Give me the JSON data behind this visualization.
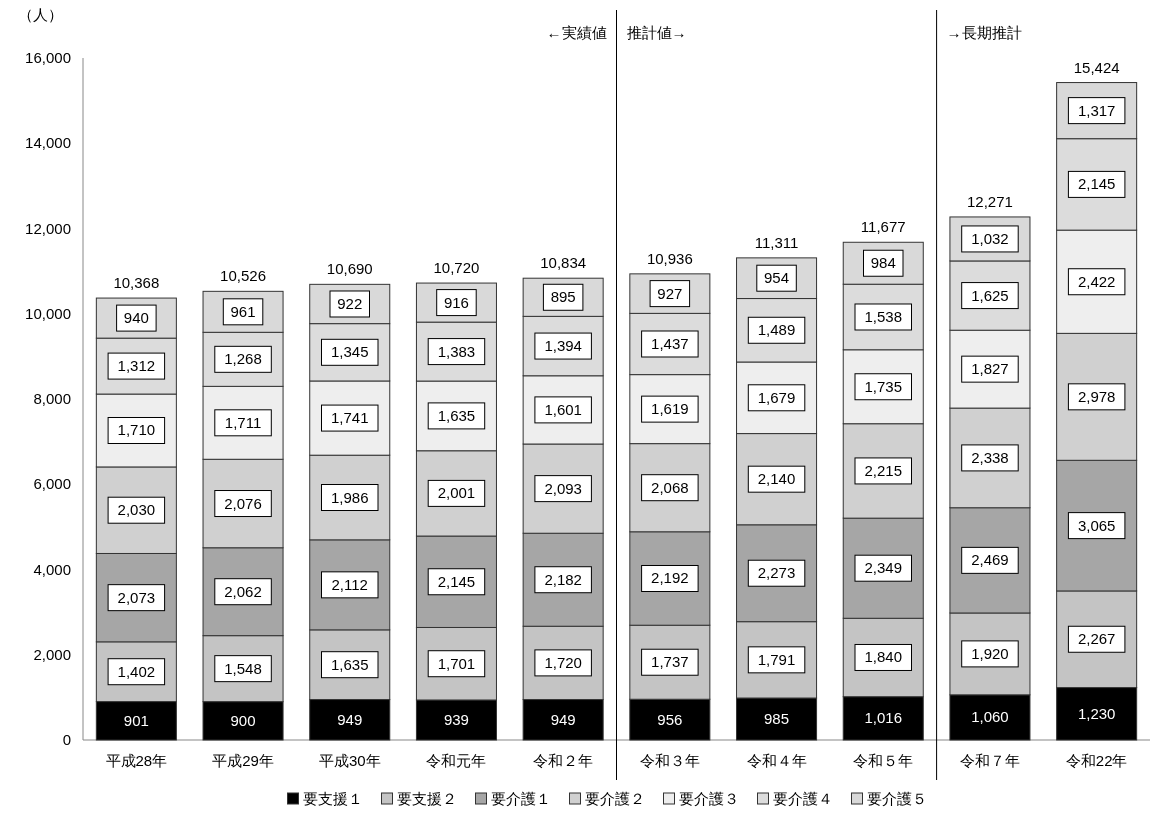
{
  "chart_data": {
    "type": "bar",
    "stacked": true,
    "ylabel": "（人）",
    "categories": [
      "平成28年",
      "平成29年",
      "平成30年",
      "令和元年",
      "令和２年",
      "令和３年",
      "令和４年",
      "令和５年",
      "令和７年",
      "令和22年"
    ],
    "series": [
      {
        "name": "要支援１",
        "color": "#000000",
        "values": [
          901,
          900,
          949,
          939,
          949,
          956,
          985,
          1016,
          1060,
          1230
        ],
        "value_labels": [
          "901",
          "900",
          "949",
          "939",
          "949",
          "956",
          "985",
          "1,016",
          "1,060",
          "1,230"
        ]
      },
      {
        "name": "要支援２",
        "color": "#c4c4c4",
        "values": [
          1402,
          1548,
          1635,
          1701,
          1720,
          1737,
          1791,
          1840,
          1920,
          2267
        ],
        "value_labels": [
          "1,402",
          "1,548",
          "1,635",
          "1,701",
          "1,720",
          "1,737",
          "1,791",
          "1,840",
          "1,920",
          "2,267"
        ]
      },
      {
        "name": "要介護１",
        "color": "#a6a6a6",
        "values": [
          2073,
          2062,
          2112,
          2145,
          2182,
          2192,
          2273,
          2349,
          2469,
          3065
        ],
        "value_labels": [
          "2,073",
          "2,062",
          "2,112",
          "2,145",
          "2,182",
          "2,192",
          "2,273",
          "2,349",
          "2,469",
          "3,065"
        ]
      },
      {
        "name": "要介護２",
        "color": "#d0d0d0",
        "values": [
          2030,
          2076,
          1986,
          2001,
          2093,
          2068,
          2140,
          2215,
          2338,
          2978
        ],
        "value_labels": [
          "2,030",
          "2,076",
          "1,986",
          "2,001",
          "2,093",
          "2,068",
          "2,140",
          "2,215",
          "2,338",
          "2,978"
        ]
      },
      {
        "name": "要介護３",
        "color": "#eeeeee",
        "values": [
          1710,
          1711,
          1741,
          1635,
          1601,
          1619,
          1679,
          1735,
          1827,
          2422
        ],
        "value_labels": [
          "1,710",
          "1,711",
          "1,741",
          "1,635",
          "1,601",
          "1,619",
          "1,679",
          "1,735",
          "1,827",
          "2,422"
        ]
      },
      {
        "name": "要介護４",
        "color": "#dcdcdc",
        "values": [
          1312,
          1268,
          1345,
          1383,
          1394,
          1437,
          1489,
          1538,
          1625,
          2145
        ],
        "value_labels": [
          "1,312",
          "1,268",
          "1,345",
          "1,383",
          "1,394",
          "1,437",
          "1,489",
          "1,538",
          "1,625",
          "2,145"
        ]
      },
      {
        "name": "要介護５",
        "color": "#d9d9d9",
        "values": [
          940,
          961,
          922,
          916,
          895,
          927,
          954,
          984,
          1032,
          1317
        ],
        "value_labels": [
          "940",
          "961",
          "922",
          "916",
          "895",
          "927",
          "954",
          "984",
          "1,032",
          "1,317"
        ]
      }
    ],
    "totals": [
      "10,368",
      "10,526",
      "10,690",
      "10,720",
      "10,834",
      "10,936",
      "11,311",
      "11,677",
      "12,271",
      "15,424"
    ],
    "ylim": [
      0,
      16000
    ],
    "yticks": [
      0,
      {
        "value": 2000,
        "label": "2,000"
      },
      {
        "value": 4000,
        "label": "4,000"
      },
      {
        "value": 6000,
        "label": "6,000"
      },
      {
        "value": 8000,
        "label": "8,000"
      },
      {
        "value": 10000,
        "label": "10,000"
      },
      {
        "value": 12000,
        "label": "12,000"
      },
      {
        "value": 14000,
        "label": "14,000"
      },
      {
        "value": 16000,
        "label": "16,000"
      }
    ],
    "annotations": [
      "←実績値",
      "推計値→",
      "→長期推計"
    ],
    "grid": false,
    "legend": "bottom"
  }
}
